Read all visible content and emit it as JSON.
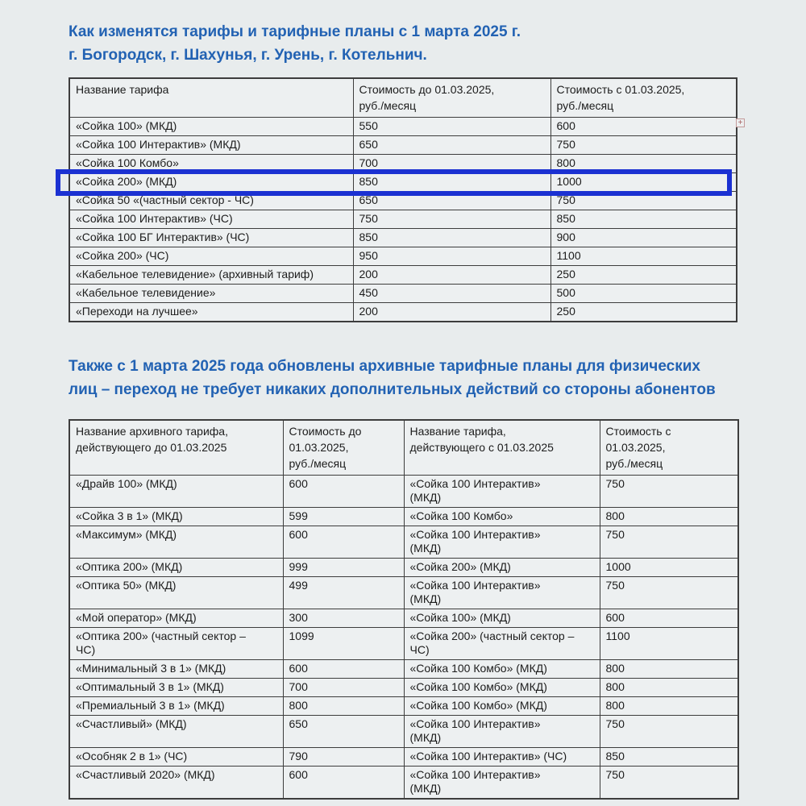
{
  "titles": {
    "first": [
      "Как изменятся тарифы и тарифные планы с 1 марта 2025 г.",
      "г. Богородск, г. Шахунья, г. Урень, г. Котельнич."
    ],
    "second": [
      "Также с 1 марта 2025 года обновлены архивные тарифные планы для физических",
      "лиц – переход не требует никаких дополнительных действий со стороны абонентов"
    ]
  },
  "table1": {
    "headers": [
      "Название тарифа",
      "Стоимость до 01.03.2025,\nруб./месяц",
      "Стоимость с 01.03.2025,\nруб./месяц"
    ],
    "rows": [
      [
        "«Сойка 100» (МКД)",
        "550",
        "600"
      ],
      [
        "«Сойка 100 Интерактив» (МКД)",
        "650",
        "750"
      ],
      [
        "«Сойка 100 Комбо»",
        "700",
        "800"
      ],
      [
        "«Сойка 200» (МКД)",
        "850",
        "1000"
      ],
      [
        "«Сойка 50 «(частный сектор - ЧС)",
        "650",
        "750"
      ],
      [
        "«Сойка 100 Интерактив» (ЧС)",
        "750",
        "850"
      ],
      [
        "«Сойка 100 БГ Интерактив» (ЧС)",
        "850",
        "900"
      ],
      [
        "«Сойка 200» (ЧС)",
        "950",
        "1100"
      ],
      [
        "«Кабельное телевидение» (архивный тариф)",
        "200",
        "250"
      ],
      [
        "«Кабельное телевидение»",
        "450",
        "500"
      ],
      [
        "«Переходи на лучшее»",
        "200",
        "250"
      ]
    ],
    "highlight_row_index": 3
  },
  "table2": {
    "headers": [
      "Название архивного тарифа,\nдействующего до 01.03.2025",
      "Стоимость до\n01.03.2025,\nруб./месяц",
      "Название тарифа,\nдействующего с 01.03.2025",
      "Стоимость с\n01.03.2025,\nруб./месяц"
    ],
    "rows": [
      [
        "«Драйв 100» (МКД)",
        "600",
        "«Сойка 100 Интерактив»\n(МКД)",
        "750"
      ],
      [
        "«Сойка 3 в 1» (МКД)",
        "599",
        "«Сойка 100 Комбо»",
        "800"
      ],
      [
        "«Максимум» (МКД)",
        "600",
        "«Сойка 100 Интерактив»\n(МКД)",
        "750"
      ],
      [
        "«Оптика 200» (МКД)",
        "999",
        "«Сойка 200» (МКД)",
        "1000"
      ],
      [
        "«Оптика 50» (МКД)",
        "499",
        "«Сойка 100 Интерактив»\n(МКД)",
        "750"
      ],
      [
        "«Мой оператор» (МКД)",
        "300",
        "«Сойка 100» (МКД)",
        "600"
      ],
      [
        "«Оптика 200» (частный сектор –\nЧС)",
        "1099",
        "«Сойка 200» (частный сектор –\nЧС)",
        "1100"
      ],
      [
        "«Минимальный 3 в 1» (МКД)",
        "600",
        "«Сойка 100 Комбо» (МКД)",
        "800"
      ],
      [
        "«Оптимальный 3 в 1» (МКД)",
        "700",
        "«Сойка 100 Комбо» (МКД)",
        "800"
      ],
      [
        "«Премиальный 3 в 1» (МКД)",
        "800",
        "«Сойка 100 Комбо» (МКД)",
        "800"
      ],
      [
        "«Счастливый» (МКД)",
        "650",
        "«Сойка 100 Интерактив»\n(МКД)",
        "750"
      ],
      [
        "«Особняк 2 в 1» (ЧС)",
        "790",
        "«Сойка 100 Интерактив» (ЧС)",
        "850"
      ],
      [
        "«Счастливый 2020» (МКД)",
        "600",
        "«Сойка 100 Интерактив»\n(МКД)",
        "750"
      ]
    ]
  },
  "annotations": {
    "highlight_color": "#1b31d2",
    "comment_marker_glyph": "+"
  }
}
